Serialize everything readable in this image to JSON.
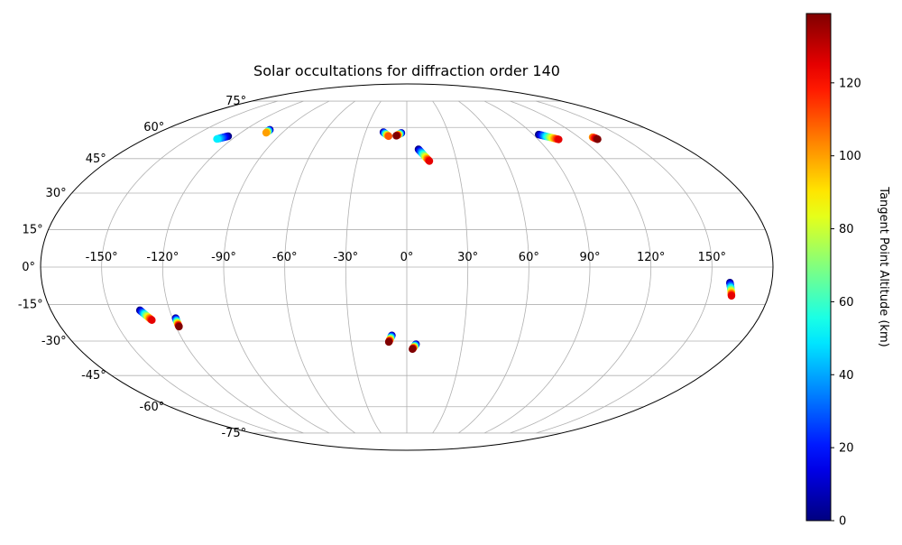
{
  "chart_data": {
    "type": "scatter",
    "projection": "mollweide",
    "title": "Solar occultations for diffraction order 140",
    "grid": true,
    "lon_ticks": [
      {
        "value": -150,
        "label": "-150°"
      },
      {
        "value": -120,
        "label": "-120°"
      },
      {
        "value": -90,
        "label": "-90°"
      },
      {
        "value": -60,
        "label": "-60°"
      },
      {
        "value": -30,
        "label": "-30°"
      },
      {
        "value": 0,
        "label": "0°"
      },
      {
        "value": 30,
        "label": "30°"
      },
      {
        "value": 60,
        "label": "60°"
      },
      {
        "value": 90,
        "label": "90°"
      },
      {
        "value": 120,
        "label": "120°"
      },
      {
        "value": 150,
        "label": "150°"
      }
    ],
    "lat_ticks": [
      {
        "value": 75,
        "label": "75°"
      },
      {
        "value": 60,
        "label": "60°"
      },
      {
        "value": 45,
        "label": "45°"
      },
      {
        "value": 30,
        "label": "30°"
      },
      {
        "value": 15,
        "label": "15°"
      },
      {
        "value": 0,
        "label": "0°"
      },
      {
        "value": -15,
        "label": "-15°"
      },
      {
        "value": -30,
        "label": "-30°"
      },
      {
        "value": -45,
        "label": "-45°"
      },
      {
        "value": -60,
        "label": "-60°"
      },
      {
        "value": -75,
        "label": "-75°"
      }
    ],
    "colorbar": {
      "label": "Tangent Point Altitude (km)",
      "min": 0,
      "max": 139,
      "colormap": "jet",
      "ticks": [
        {
          "value": 0,
          "label": "0"
        },
        {
          "value": 20,
          "label": "20"
        },
        {
          "value": 40,
          "label": "40"
        },
        {
          "value": 60,
          "label": "60"
        },
        {
          "value": 80,
          "label": "80"
        },
        {
          "value": 100,
          "label": "100"
        },
        {
          "value": 120,
          "label": "120"
        }
      ]
    },
    "tracks": [
      {
        "lon0": -125.5,
        "lat0": 55.6,
        "lon1": -130.5,
        "lat1": 54.2,
        "alt0": 0,
        "alt1": 50
      },
      {
        "lon0": -101.7,
        "lat0": 58.8,
        "lon1": -101.7,
        "lat1": 57.3,
        "alt0": 0,
        "alt1": 100
      },
      {
        "lon0": -17.0,
        "lat0": 57.6,
        "lon1": -12.8,
        "lat1": 55.6,
        "alt0": 0,
        "alt1": 110
      },
      {
        "lon0": -3.9,
        "lat0": 57.2,
        "lon1": -7.4,
        "lat1": 55.8,
        "alt0": 0,
        "alt1": 139
      },
      {
        "lon0": 7.5,
        "lat0": 49.3,
        "lon1": 13.6,
        "lat1": 43.9,
        "alt0": 0,
        "alt1": 125
      },
      {
        "lon0": 93.9,
        "lat0": 56.4,
        "lon1": 104.1,
        "lat1": 54.0,
        "alt0": 0,
        "alt1": 125
      },
      {
        "lon0": 129.5,
        "lat0": 55.1,
        "lon1": 131.0,
        "lat1": 54.1,
        "alt0": 100,
        "alt1": 139
      },
      {
        "lon0": -135.0,
        "lat0": -17.3,
        "lon1": -130.9,
        "lat1": -21.3,
        "alt0": 0,
        "alt1": 125
      },
      {
        "lon0": -118.3,
        "lat0": -20.5,
        "lon1": -118.4,
        "lat1": -24.0,
        "alt0": 0,
        "alt1": 139
      },
      {
        "lon0": -7.9,
        "lat0": -27.6,
        "lon1": -9.7,
        "lat1": -30.4,
        "alt0": 0,
        "alt1": 139
      },
      {
        "lon0": 5.0,
        "lat0": -31.3,
        "lon1": 3.1,
        "lat1": -33.4,
        "alt0": 0,
        "alt1": 139
      },
      {
        "lon0": 159.4,
        "lat0": -6.2,
        "lon1": 161.6,
        "lat1": -11.5,
        "alt0": 0,
        "alt1": 125
      }
    ]
  }
}
